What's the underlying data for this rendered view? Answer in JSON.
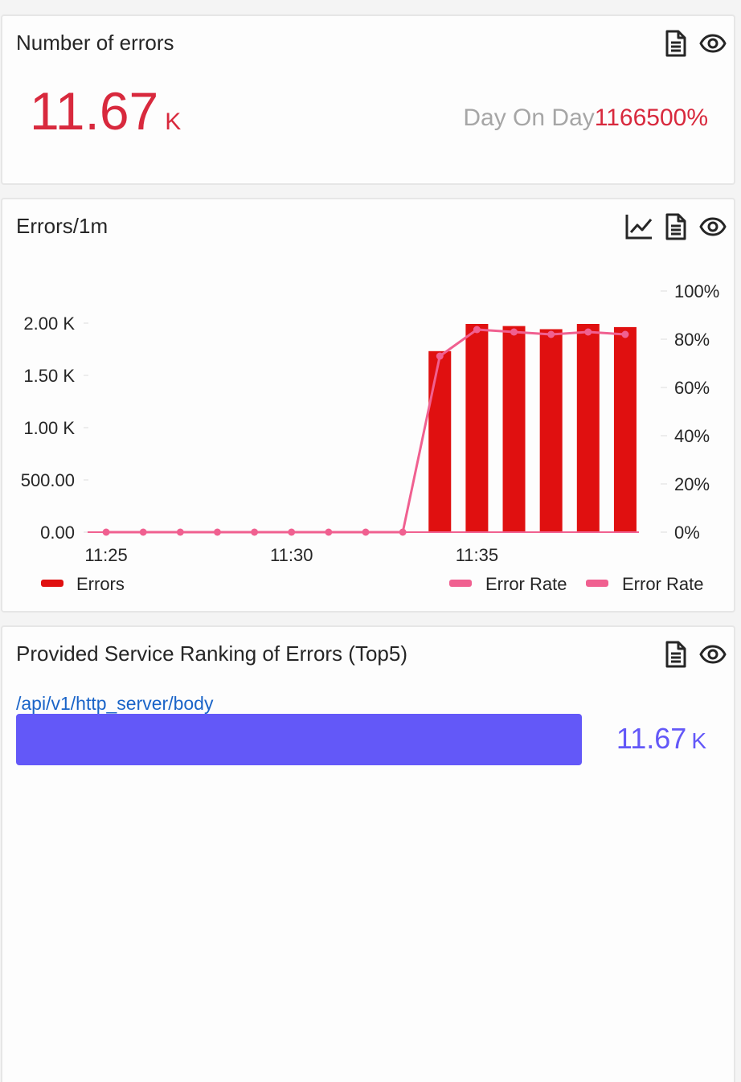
{
  "card1": {
    "title": "Number of errors",
    "value": "11.67",
    "unit": "K",
    "dod_label": "Day On Day",
    "dod_value": "1166500%",
    "accent": "#d8293d",
    "icons": [
      "document-icon",
      "eye-icon"
    ]
  },
  "card2": {
    "title": "Errors/1m",
    "icons": [
      "line-chart-icon",
      "document-icon",
      "eye-icon"
    ]
  },
  "card3": {
    "title": "Provided Service Ranking of Errors (Top5)",
    "icons": [
      "document-icon",
      "eye-icon"
    ],
    "items": [
      {
        "name": "/api/v1/http_server/body",
        "value": "11.67",
        "unit": "K",
        "fraction": 1.0
      }
    ],
    "bar_color": "#6358f8"
  },
  "chart_data": {
    "type": "bar",
    "x": [
      "11:25",
      "11:26",
      "11:27",
      "11:28",
      "11:29",
      "11:30",
      "11:31",
      "11:32",
      "11:33",
      "11:34",
      "11:35",
      "11:36",
      "11:37",
      "11:38",
      "11:39"
    ],
    "x_tick_labels": [
      "11:25",
      "11:30",
      "11:35"
    ],
    "y_left": {
      "ticks": [
        "0.00",
        "500.00",
        "1.00 K",
        "1.50 K",
        "2.00 K"
      ],
      "range": [
        0,
        2000
      ]
    },
    "y_right": {
      "ticks": [
        "0%",
        "20%",
        "40%",
        "60%",
        "80%",
        "100%"
      ],
      "range": [
        0,
        100
      ]
    },
    "series": [
      {
        "name": "Errors",
        "type": "bar",
        "color": "#e01010",
        "values": [
          0,
          0,
          0,
          0,
          0,
          0,
          0,
          0,
          0,
          1740,
          2000,
          1980,
          1950,
          2000,
          1970
        ]
      },
      {
        "name": "Error Rate",
        "type": "line",
        "color": "#f06090",
        "values": [
          0,
          0,
          0,
          0,
          0,
          0,
          0,
          0,
          0,
          73,
          84,
          83,
          82,
          83,
          82
        ]
      }
    ],
    "legend": [
      "Errors",
      "Error Rate",
      "Error Rate"
    ],
    "legend_position": "bottom",
    "grid": false
  }
}
